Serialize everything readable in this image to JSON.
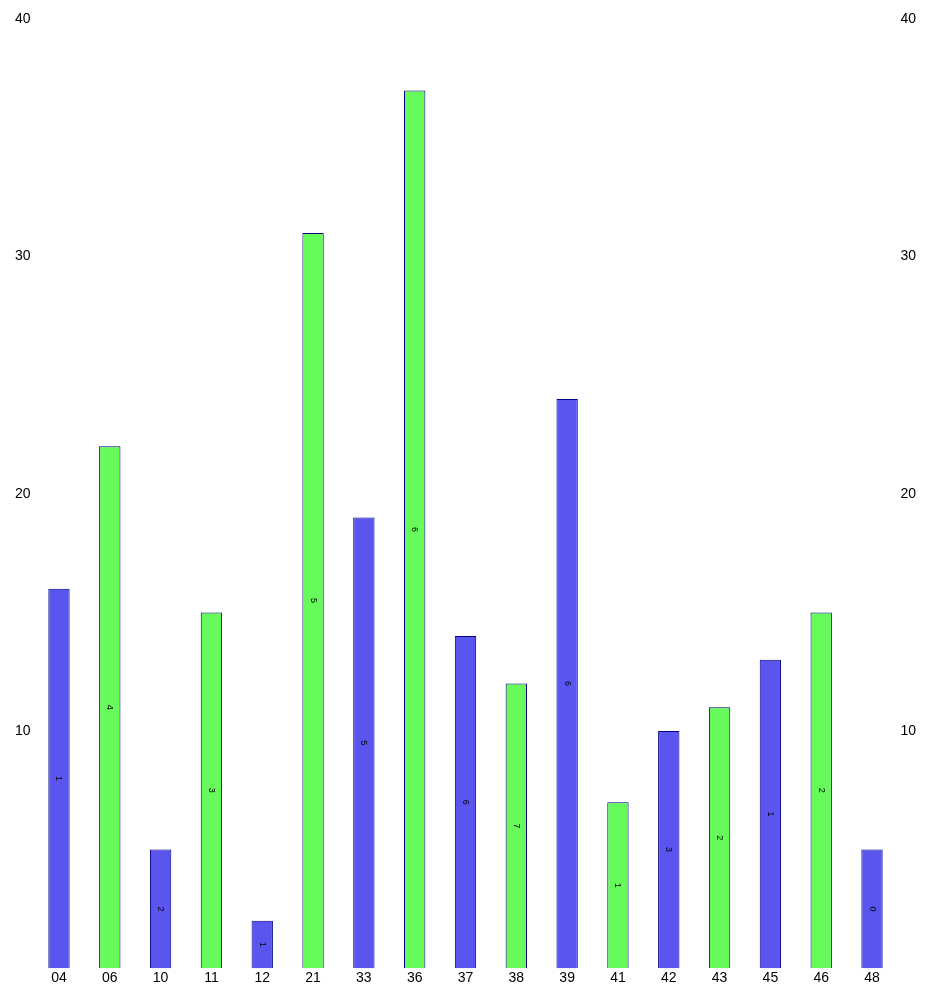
{
  "chart_data": {
    "type": "bar",
    "categories": [
      "04",
      "06",
      "10",
      "11",
      "12",
      "21",
      "33",
      "36",
      "37",
      "38",
      "39",
      "41",
      "42",
      "43",
      "45",
      "46",
      "48"
    ],
    "values": [
      16,
      22,
      5,
      15,
      2,
      31,
      19,
      37,
      14,
      12,
      24,
      7,
      10,
      11,
      13,
      15,
      5
    ],
    "colors": [
      "#5a55ee",
      "#66fa5a",
      "#5a55ee",
      "#66fa5a",
      "#5a55ee",
      "#66fa5a",
      "#5a55ee",
      "#66fa5a",
      "#5a55ee",
      "#66fa5a",
      "#5a55ee",
      "#66fa5a",
      "#5a55ee",
      "#66fa5a",
      "#5a55ee",
      "#66fa5a",
      "#5a55ee"
    ],
    "ylim": [
      0,
      40
    ],
    "yticks": [
      10,
      20,
      30,
      40
    ],
    "y2lim": [
      0,
      40
    ],
    "y2ticks": [
      10,
      20,
      30,
      40
    ],
    "grid": false,
    "legend": false,
    "annotations": [
      "1",
      "4",
      "2",
      "3",
      "1",
      "5",
      "5",
      "6",
      "6",
      "7",
      "6",
      "1",
      "3",
      "2",
      "1",
      "2",
      "0"
    ]
  }
}
